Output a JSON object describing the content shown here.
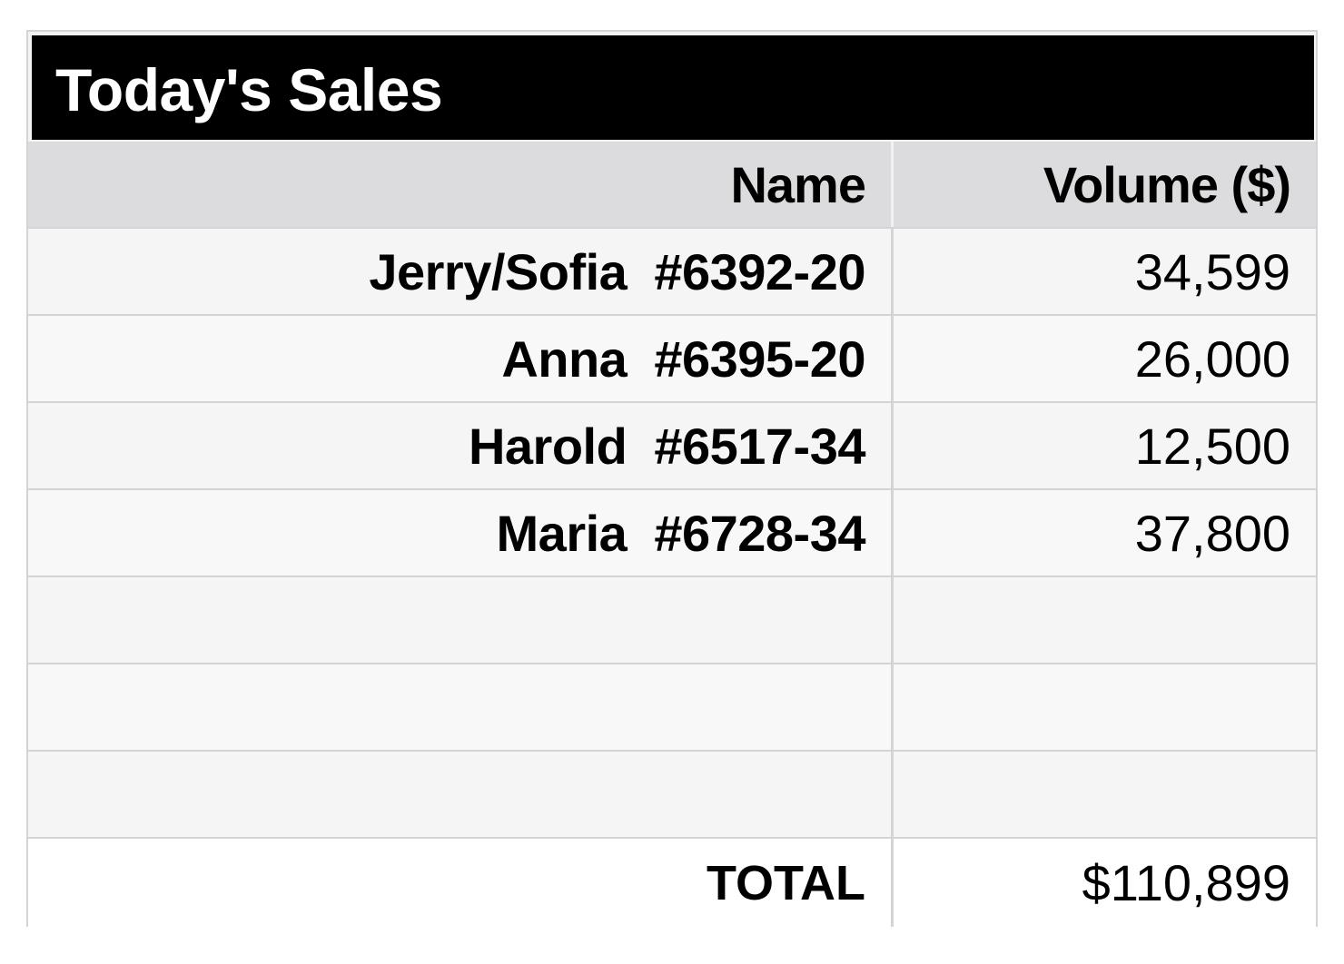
{
  "title": "Today's Sales",
  "table": {
    "headers": {
      "name": "Name",
      "volume": "Volume ($)"
    },
    "rows": [
      {
        "person": "Jerry/Sofia",
        "id": "#6392-20",
        "volume": "34,599"
      },
      {
        "person": "Anna",
        "id": "#6395-20",
        "volume": "26,000"
      },
      {
        "person": "Harold",
        "id": "#6517-34",
        "volume": "12,500"
      },
      {
        "person": "Maria",
        "id": "#6728-34",
        "volume": "37,800"
      },
      {
        "person": "",
        "id": "",
        "volume": ""
      },
      {
        "person": "",
        "id": "",
        "volume": ""
      },
      {
        "person": "",
        "id": "",
        "volume": ""
      }
    ],
    "total": {
      "label": "TOTAL",
      "value": "$110,899"
    }
  }
}
